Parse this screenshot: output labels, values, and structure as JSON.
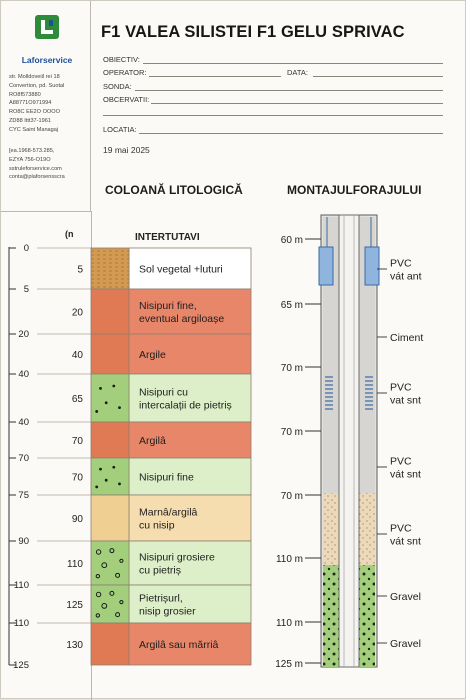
{
  "header": {
    "title": "F1 VALEA SILISTEI F1 GELU SPRIVAC",
    "fields": [
      {
        "label": "OBIECTIV:"
      },
      {
        "label": "OPERATOR:"
      },
      {
        "label": "DATA:"
      },
      {
        "label": "SONDA:"
      },
      {
        "label": "OBCERVATII:"
      },
      {
        "label": "LOCATIA:"
      }
    ],
    "date": "19 mai 2025"
  },
  "sidebar": {
    "brand": "Laforservice",
    "address_lines": [
      "str. Molldoveiil rei 18",
      "Convertion, pd. Suotal",
      "RO8f573880",
      "A88771O971994",
      "RO8C EE2O OOOO",
      "ZD88 Ittt37-1961",
      "CYC Saint Managaj"
    ],
    "contact_lines": [
      "[ea.1968-573.285,",
      "EZYA 756-O19O",
      "sstruleforservice.com",
      "conta@plaforsensscra"
    ],
    "accent_color": "#1e4f9c",
    "logo_color": "#2e8b3a"
  },
  "litho": {
    "heading": "COLOANĂ LITOLOGICĂ",
    "axis_unit": "(n",
    "column_heading": "INTERTUTAVI",
    "scale_labels": [
      "0",
      "5",
      "20",
      "40",
      "40",
      "70",
      "75",
      "90",
      "110",
      "110",
      "125"
    ],
    "layers": [
      {
        "depth": "5",
        "description": [
          "Sol vegetal +luturi"
        ],
        "pattern": "soil",
        "color": "#d39a52"
      },
      {
        "depth": "20",
        "description": [
          "Nisipuri fine,",
          "eventual argiloașe"
        ],
        "pattern": "plain",
        "color": "#e07a55"
      },
      {
        "depth": "40",
        "description": [
          "Argile"
        ],
        "pattern": "plain",
        "color": "#e07a55"
      },
      {
        "depth": "65",
        "description": [
          "Nisipuri cu",
          "intercalații de pietriș"
        ],
        "pattern": "dots",
        "color": "#a3cf7c"
      },
      {
        "depth": "70",
        "description": [
          "Argilâ"
        ],
        "pattern": "plain",
        "color": "#e07a55"
      },
      {
        "depth": "70",
        "description": [
          "Nisipuri fine"
        ],
        "pattern": "dots",
        "color": "#a3cf7c"
      },
      {
        "depth": "90",
        "description": [
          "Marnâ/argilâ",
          "cu nisip"
        ],
        "pattern": "plain",
        "color": "#f0cf93"
      },
      {
        "depth": "110",
        "description": [
          "Nisipuri grosiere",
          "cu pietriș"
        ],
        "pattern": "circles",
        "color": "#a3cf7c"
      },
      {
        "depth": "125",
        "description": [
          "Pietrișurl,",
          "nisip grosier"
        ],
        "pattern": "circles",
        "color": "#a3cf7c"
      },
      {
        "depth": "130",
        "description": [
          "Argilâ sau mărriâ"
        ],
        "pattern": "plain",
        "color": "#e07a55"
      }
    ]
  },
  "well": {
    "heading": "MONTAJULFORAJULUI",
    "depth_labels": [
      "60 m",
      "65 m",
      "70 m",
      "70 m",
      "70 m",
      "110 m",
      "110 m",
      "125 m"
    ],
    "components": [
      {
        "label": [
          "PVC",
          "vát ant"
        ]
      },
      {
        "label": [
          "Ciment"
        ]
      },
      {
        "label": [
          "PVC",
          "vat snt"
        ]
      },
      {
        "label": [
          "PVC",
          "vát snt"
        ]
      },
      {
        "label": [
          "PVC",
          "vát snt"
        ]
      },
      {
        "label": [
          "Gravel"
        ]
      },
      {
        "label": [
          "Gravel"
        ]
      }
    ]
  }
}
